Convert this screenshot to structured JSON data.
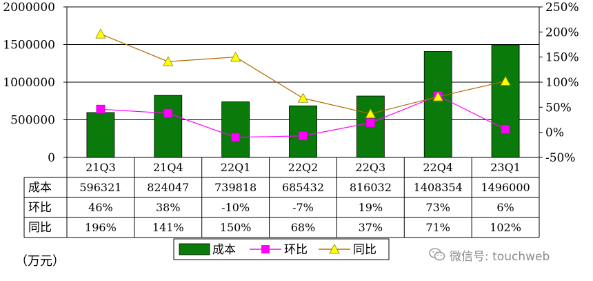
{
  "chart_data": {
    "type": "bar",
    "categories": [
      "21Q3",
      "21Q4",
      "22Q1",
      "22Q2",
      "22Q3",
      "22Q4",
      "23Q1"
    ],
    "ylim": [
      0,
      2000000
    ],
    "y2lim": [
      -0.5,
      2.5
    ],
    "yticks": [
      "2000000",
      "1500000",
      "1000000",
      "500000",
      "0"
    ],
    "y2ticks": [
      "250%",
      "200%",
      "150%",
      "100%",
      "50%",
      "0%",
      "-50%"
    ],
    "grid": true,
    "legend_position": "bottom",
    "series": [
      {
        "name": "成本",
        "type": "bar",
        "axis": "left",
        "color": "#0a7a0a",
        "values": [
          596321,
          824047,
          739818,
          685432,
          816032,
          1408354,
          1496000
        ]
      },
      {
        "name": "环比",
        "type": "line",
        "axis": "right",
        "color": "#ff00ff",
        "marker": "square",
        "values": [
          0.46,
          0.38,
          -0.1,
          -0.07,
          0.19,
          0.73,
          0.06
        ]
      },
      {
        "name": "同比",
        "type": "line",
        "axis": "right",
        "color": "#b36b00",
        "marker": "triangle",
        "marker_fill": "#ffff00",
        "values": [
          1.96,
          1.41,
          1.5,
          0.68,
          0.37,
          0.71,
          1.02
        ]
      }
    ],
    "table": {
      "rows": [
        {
          "label": "成本",
          "cells": [
            "596321",
            "824047",
            "739818",
            "685432",
            "816032",
            "1408354",
            "1496000"
          ]
        },
        {
          "label": "环比",
          "cells": [
            "46%",
            "38%",
            "-10%",
            "-7%",
            "19%",
            "73%",
            "6%"
          ]
        },
        {
          "label": "同比",
          "cells": [
            "196%",
            "141%",
            "150%",
            "68%",
            "37%",
            "71%",
            "102%"
          ]
        }
      ]
    }
  },
  "unit_label": "（万元）",
  "watermark": {
    "text": "微信号: touchweb",
    "icon": "wechat-icon"
  }
}
